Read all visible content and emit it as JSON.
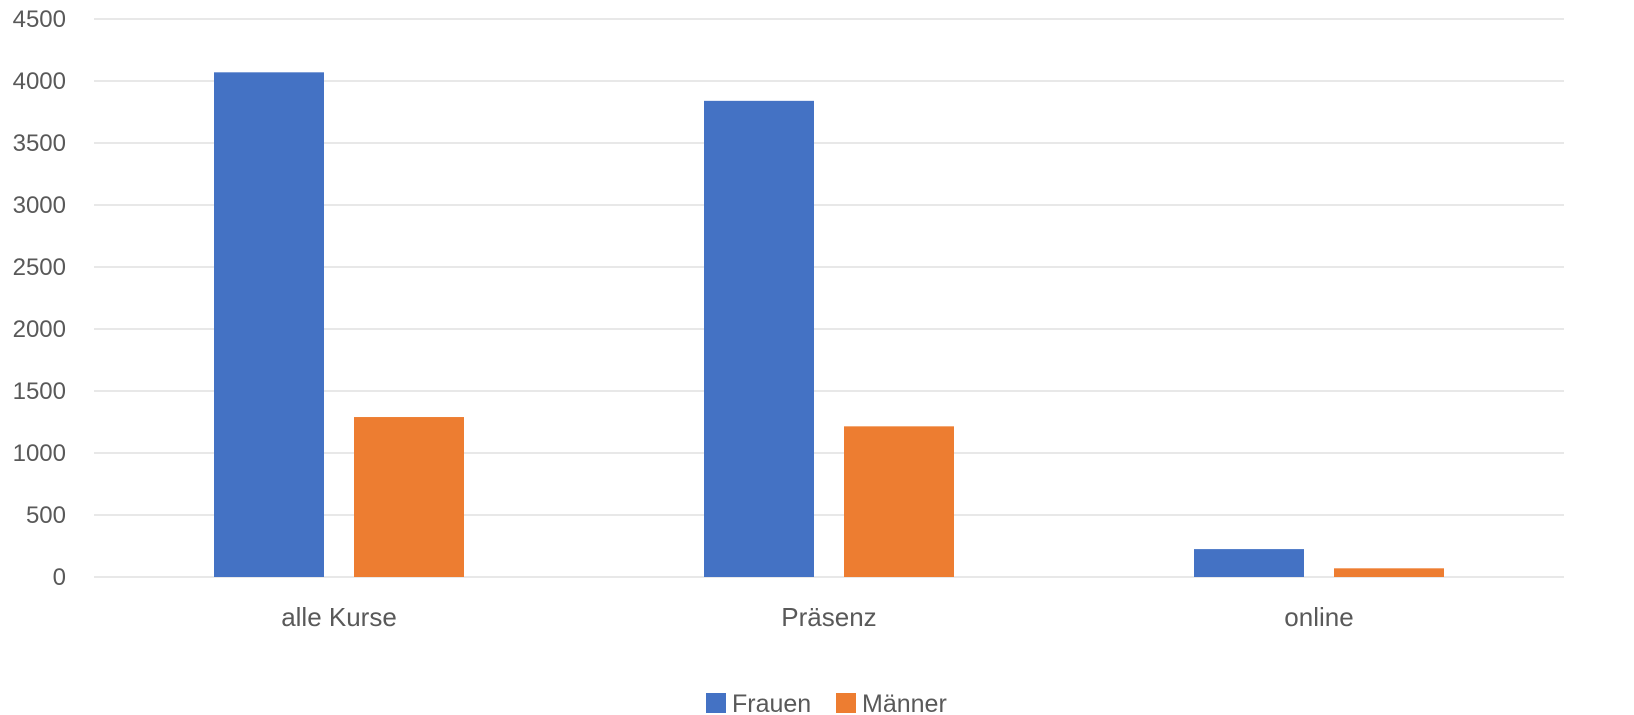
{
  "chart_data": {
    "type": "bar",
    "categories": [
      "alle Kurse",
      "Präsenz",
      "online"
    ],
    "series": [
      {
        "name": "Frauen",
        "color": "#4472c4",
        "values": [
          4070,
          3840,
          225
        ]
      },
      {
        "name": "Männer",
        "color": "#ed7d31",
        "values": [
          1290,
          1215,
          70
        ]
      }
    ],
    "yticks": [
      "0",
      "500",
      "1000",
      "1500",
      "2000",
      "2500",
      "3000",
      "3500",
      "4000",
      "4500"
    ],
    "ylim": [
      0,
      4500
    ],
    "grid": true,
    "legend_position": "bottom"
  }
}
